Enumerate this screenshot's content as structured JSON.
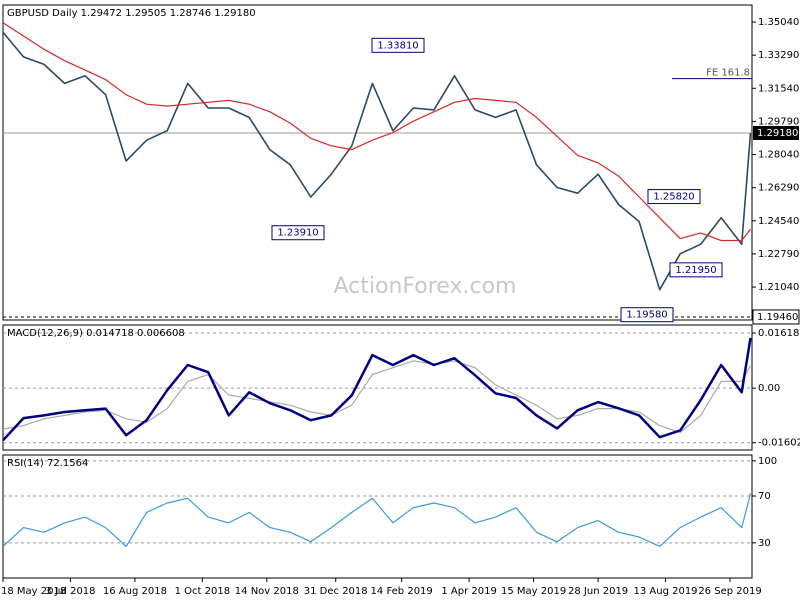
{
  "chart_data": [
    {
      "type": "line",
      "title": "GBPUSD Daily 1.29472 1.29505 1.28746 1.29180",
      "xlim": [
        "18 May 2018",
        "11 Oct 2019"
      ],
      "x": [
        "18 May 2018",
        "1 Jun 2018",
        "15 Jun 2018",
        "29 Jun 2018",
        "13 Jul 2018",
        "27 Jul 2018",
        "10 Aug 2018",
        "24 Aug 2018",
        "7 Sep 2018",
        "21 Sep 2018",
        "5 Oct 2018",
        "19 Oct 2018",
        "2 Nov 2018",
        "16 Nov 2018",
        "30 Nov 2018",
        "14 Dec 2018",
        "28 Dec 2018",
        "11 Jan 2019",
        "25 Jan 2019",
        "8 Feb 2019",
        "22 Feb 2019",
        "8 Mar 2019",
        "22 Mar 2019",
        "5 Apr 2019",
        "19 Apr 2019",
        "3 May 2019",
        "17 May 2019",
        "31 May 2019",
        "14 Jun 2019",
        "28 Jun 2019",
        "12 Jul 2019",
        "26 Jul 2019",
        "9 Aug 2019",
        "23 Aug 2019",
        "6 Sep 2019",
        "20 Sep 2019",
        "4 Oct 2019",
        "10 Oct 2019"
      ],
      "series": [
        {
          "color": "#2b4a63",
          "values": [
            1.345,
            1.332,
            1.328,
            1.318,
            1.322,
            1.312,
            1.277,
            1.288,
            1.293,
            1.318,
            1.305,
            1.305,
            1.3,
            1.283,
            1.275,
            1.258,
            1.27,
            1.285,
            1.318,
            1.293,
            1.305,
            1.304,
            1.322,
            1.304,
            1.3,
            1.304,
            1.275,
            1.263,
            1.26,
            1.27,
            1.254,
            1.245,
            1.209,
            1.228,
            1.233,
            1.247,
            1.233,
            1.2918
          ]
        },
        {
          "color": "#d62728",
          "values": [
            1.35,
            1.343,
            1.336,
            1.33,
            1.325,
            1.32,
            1.312,
            1.307,
            1.306,
            1.307,
            1.308,
            1.309,
            1.307,
            1.303,
            1.297,
            1.289,
            1.285,
            1.283,
            1.288,
            1.292,
            1.298,
            1.303,
            1.308,
            1.31,
            1.309,
            1.308,
            1.3,
            1.29,
            1.28,
            1.276,
            1.269,
            1.258,
            1.247,
            1.236,
            1.239,
            1.235,
            1.235,
            1.241
          ]
        }
      ],
      "ylim": [
        1.193,
        1.3594
      ],
      "yticks": [
        {
          "value": 1.3504,
          "label": "1.35040"
        },
        {
          "value": 1.3329,
          "label": "1.33290"
        },
        {
          "value": 1.3154,
          "label": "1.31540"
        },
        {
          "value": 1.2979,
          "label": "1.29790"
        },
        {
          "value": 1.2804,
          "label": "1.28040"
        },
        {
          "value": 1.2629,
          "label": "1.26290"
        },
        {
          "value": 1.2454,
          "label": "1.24540"
        },
        {
          "value": 1.2279,
          "label": "1.22790"
        },
        {
          "value": 1.2104,
          "label": "1.21040"
        }
      ],
      "grid": false,
      "annotations": [
        {
          "value": 1.3381,
          "label": "1.33810"
        },
        {
          "value": 1.2391,
          "label": "1.23910"
        },
        {
          "value": 1.2582,
          "label": "1.25820"
        },
        {
          "value": 1.2195,
          "label": "1.21950"
        },
        {
          "value": 1.1958,
          "label": "1.19580"
        },
        {
          "value": 1.3205,
          "label": "FE 161.8"
        }
      ],
      "current_price": {
        "value": 1.2918,
        "label": "1.29180"
      },
      "support_level": {
        "value": 1.1946,
        "label": "1.19460"
      },
      "watermark": "ActionForex.com"
    },
    {
      "type": "line",
      "title": "MACD(12,26,9) 0.014718 0.006608",
      "xlim": [
        "18 May 2018",
        "11 Oct 2019"
      ],
      "x": [
        "18 May 2018",
        "1 Jun 2018",
        "15 Jun 2018",
        "29 Jun 2018",
        "13 Jul 2018",
        "27 Jul 2018",
        "10 Aug 2018",
        "24 Aug 2018",
        "7 Sep 2018",
        "21 Sep 2018",
        "5 Oct 2018",
        "19 Oct 2018",
        "2 Nov 2018",
        "16 Nov 2018",
        "30 Nov 2018",
        "14 Dec 2018",
        "28 Dec 2018",
        "11 Jan 2019",
        "25 Jan 2019",
        "8 Feb 2019",
        "22 Feb 2019",
        "8 Mar 2019",
        "22 Mar 2019",
        "5 Apr 2019",
        "19 Apr 2019",
        "3 May 2019",
        "17 May 2019",
        "31 May 2019",
        "14 Jun 2019",
        "28 Jun 2019",
        "12 Jul 2019",
        "26 Jul 2019",
        "9 Aug 2019",
        "23 Aug 2019",
        "6 Sep 2019",
        "20 Sep 2019",
        "4 Oct 2019",
        "10 Oct 2019"
      ],
      "series": [
        {
          "color": "#aaaaaa",
          "values": [
            -0.012,
            -0.011,
            -0.009,
            -0.008,
            -0.007,
            -0.0065,
            -0.009,
            -0.01,
            -0.006,
            0.002,
            0.004,
            -0.002,
            -0.003,
            -0.004,
            -0.005,
            -0.007,
            -0.008,
            -0.005,
            0.004,
            0.006,
            0.008,
            0.007,
            0.008,
            0.006,
            0.001,
            -0.002,
            -0.005,
            -0.009,
            -0.008,
            -0.006,
            -0.006,
            -0.007,
            -0.011,
            -0.013,
            -0.008,
            0.002,
            0.002,
            0.006608
          ]
        },
        {
          "color": "#000080",
          "values": [
            -0.0153,
            -0.0088,
            -0.008,
            -0.007,
            -0.0065,
            -0.006,
            -0.0138,
            -0.0094,
            -0.0006,
            0.0068,
            0.0047,
            -0.008,
            -0.0012,
            -0.0044,
            -0.0065,
            -0.0094,
            -0.008,
            -0.0021,
            0.0097,
            0.0068,
            0.0097,
            0.0068,
            0.0088,
            0.0038,
            -0.0015,
            -0.0029,
            -0.008,
            -0.0118,
            -0.0065,
            -0.0041,
            -0.0059,
            -0.008,
            -0.0144,
            -0.0124,
            -0.0035,
            0.0068,
            -0.0012,
            0.014718
          ]
        }
      ],
      "ylim": [
        -0.01815,
        0.01854
      ],
      "yticks": [
        0.016182,
        {
          "value": 0,
          "label": "0.00"
        },
        -0.016021
      ],
      "grid": true
    },
    {
      "type": "line",
      "title": "RSI(14) 72.1564",
      "xlim": [
        "18 May 2018",
        "11 Oct 2019"
      ],
      "x": [
        "18 May 2018",
        "1 Jun 2018",
        "15 Jun 2018",
        "29 Jun 2018",
        "13 Jul 2018",
        "27 Jul 2018",
        "10 Aug 2018",
        "24 Aug 2018",
        "7 Sep 2018",
        "21 Sep 2018",
        "5 Oct 2018",
        "19 Oct 2018",
        "2 Nov 2018",
        "16 Nov 2018",
        "30 Nov 2018",
        "14 Dec 2018",
        "28 Dec 2018",
        "11 Jan 2019",
        "25 Jan 2019",
        "8 Feb 2019",
        "22 Feb 2019",
        "8 Mar 2019",
        "22 Mar 2019",
        "5 Apr 2019",
        "19 Apr 2019",
        "3 May 2019",
        "17 May 2019",
        "31 May 2019",
        "14 Jun 2019",
        "28 Jun 2019",
        "12 Jul 2019",
        "26 Jul 2019",
        "9 Aug 2019",
        "23 Aug 2019",
        "6 Sep 2019",
        "20 Sep 2019",
        "4 Oct 2019",
        "10 Oct 2019"
      ],
      "series": [
        {
          "color": "#3a9ad9",
          "values": [
            27,
            43,
            39,
            47,
            52,
            43,
            27,
            56,
            64,
            68,
            52,
            47,
            56,
            43,
            39,
            31,
            43,
            56,
            68,
            47,
            60,
            64,
            60,
            47,
            52,
            60,
            39,
            31,
            43,
            49,
            39,
            35,
            27,
            43,
            52,
            60,
            43,
            72.1564
          ]
        }
      ],
      "ylim": [
        0,
        105
      ],
      "yticks": [
        100,
        70,
        30
      ],
      "grid": true,
      "xticks": [
        "18 May 2018",
        "3 Jul 2018",
        "16 Aug 2018",
        "1 Oct 2018",
        "14 Nov 2018",
        "31 Dec 2018",
        "14 Feb 2019",
        "1 Apr 2019",
        "15 May 2019",
        "28 Jun 2019",
        "13 Aug 2019",
        "26 Sep 2019"
      ]
    }
  ]
}
